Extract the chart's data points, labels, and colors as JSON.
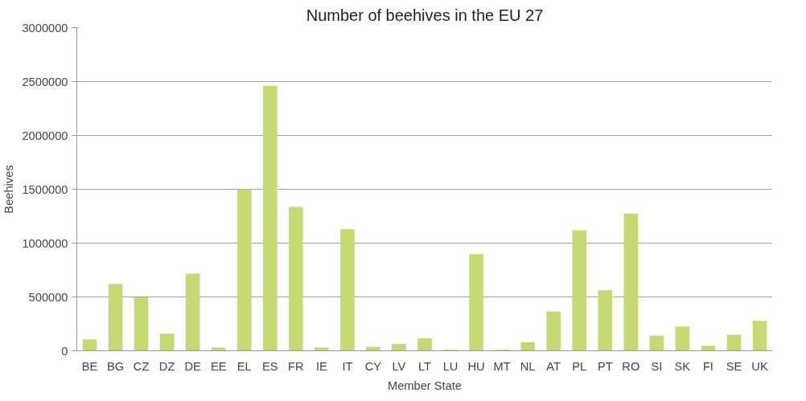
{
  "chart_data": {
    "type": "bar",
    "title": "Number of beehives in the EU 27",
    "xlabel": "Member State",
    "ylabel": "Beehives",
    "categories": [
      "BE",
      "BG",
      "CZ",
      "DZ",
      "DE",
      "EE",
      "EL",
      "ES",
      "FR",
      "IE",
      "IT",
      "CY",
      "LV",
      "LT",
      "LU",
      "HU",
      "MT",
      "NL",
      "AT",
      "PL",
      "PT",
      "RO",
      "SI",
      "SK",
      "FI",
      "SE",
      "UK"
    ],
    "values": [
      106000,
      622000,
      496000,
      158000,
      716000,
      29000,
      1500000,
      2461000,
      1335000,
      29000,
      1129000,
      37000,
      63000,
      115000,
      11000,
      897000,
      11000,
      80000,
      364000,
      1120000,
      562000,
      1275000,
      140000,
      226000,
      46000,
      149000,
      278000
    ],
    "color": "#c4d973",
    "ylim": [
      0,
      3000000
    ],
    "yticks": [
      0,
      500000,
      1000000,
      1500000,
      2000000,
      2500000,
      3000000
    ],
    "grid": "y"
  }
}
